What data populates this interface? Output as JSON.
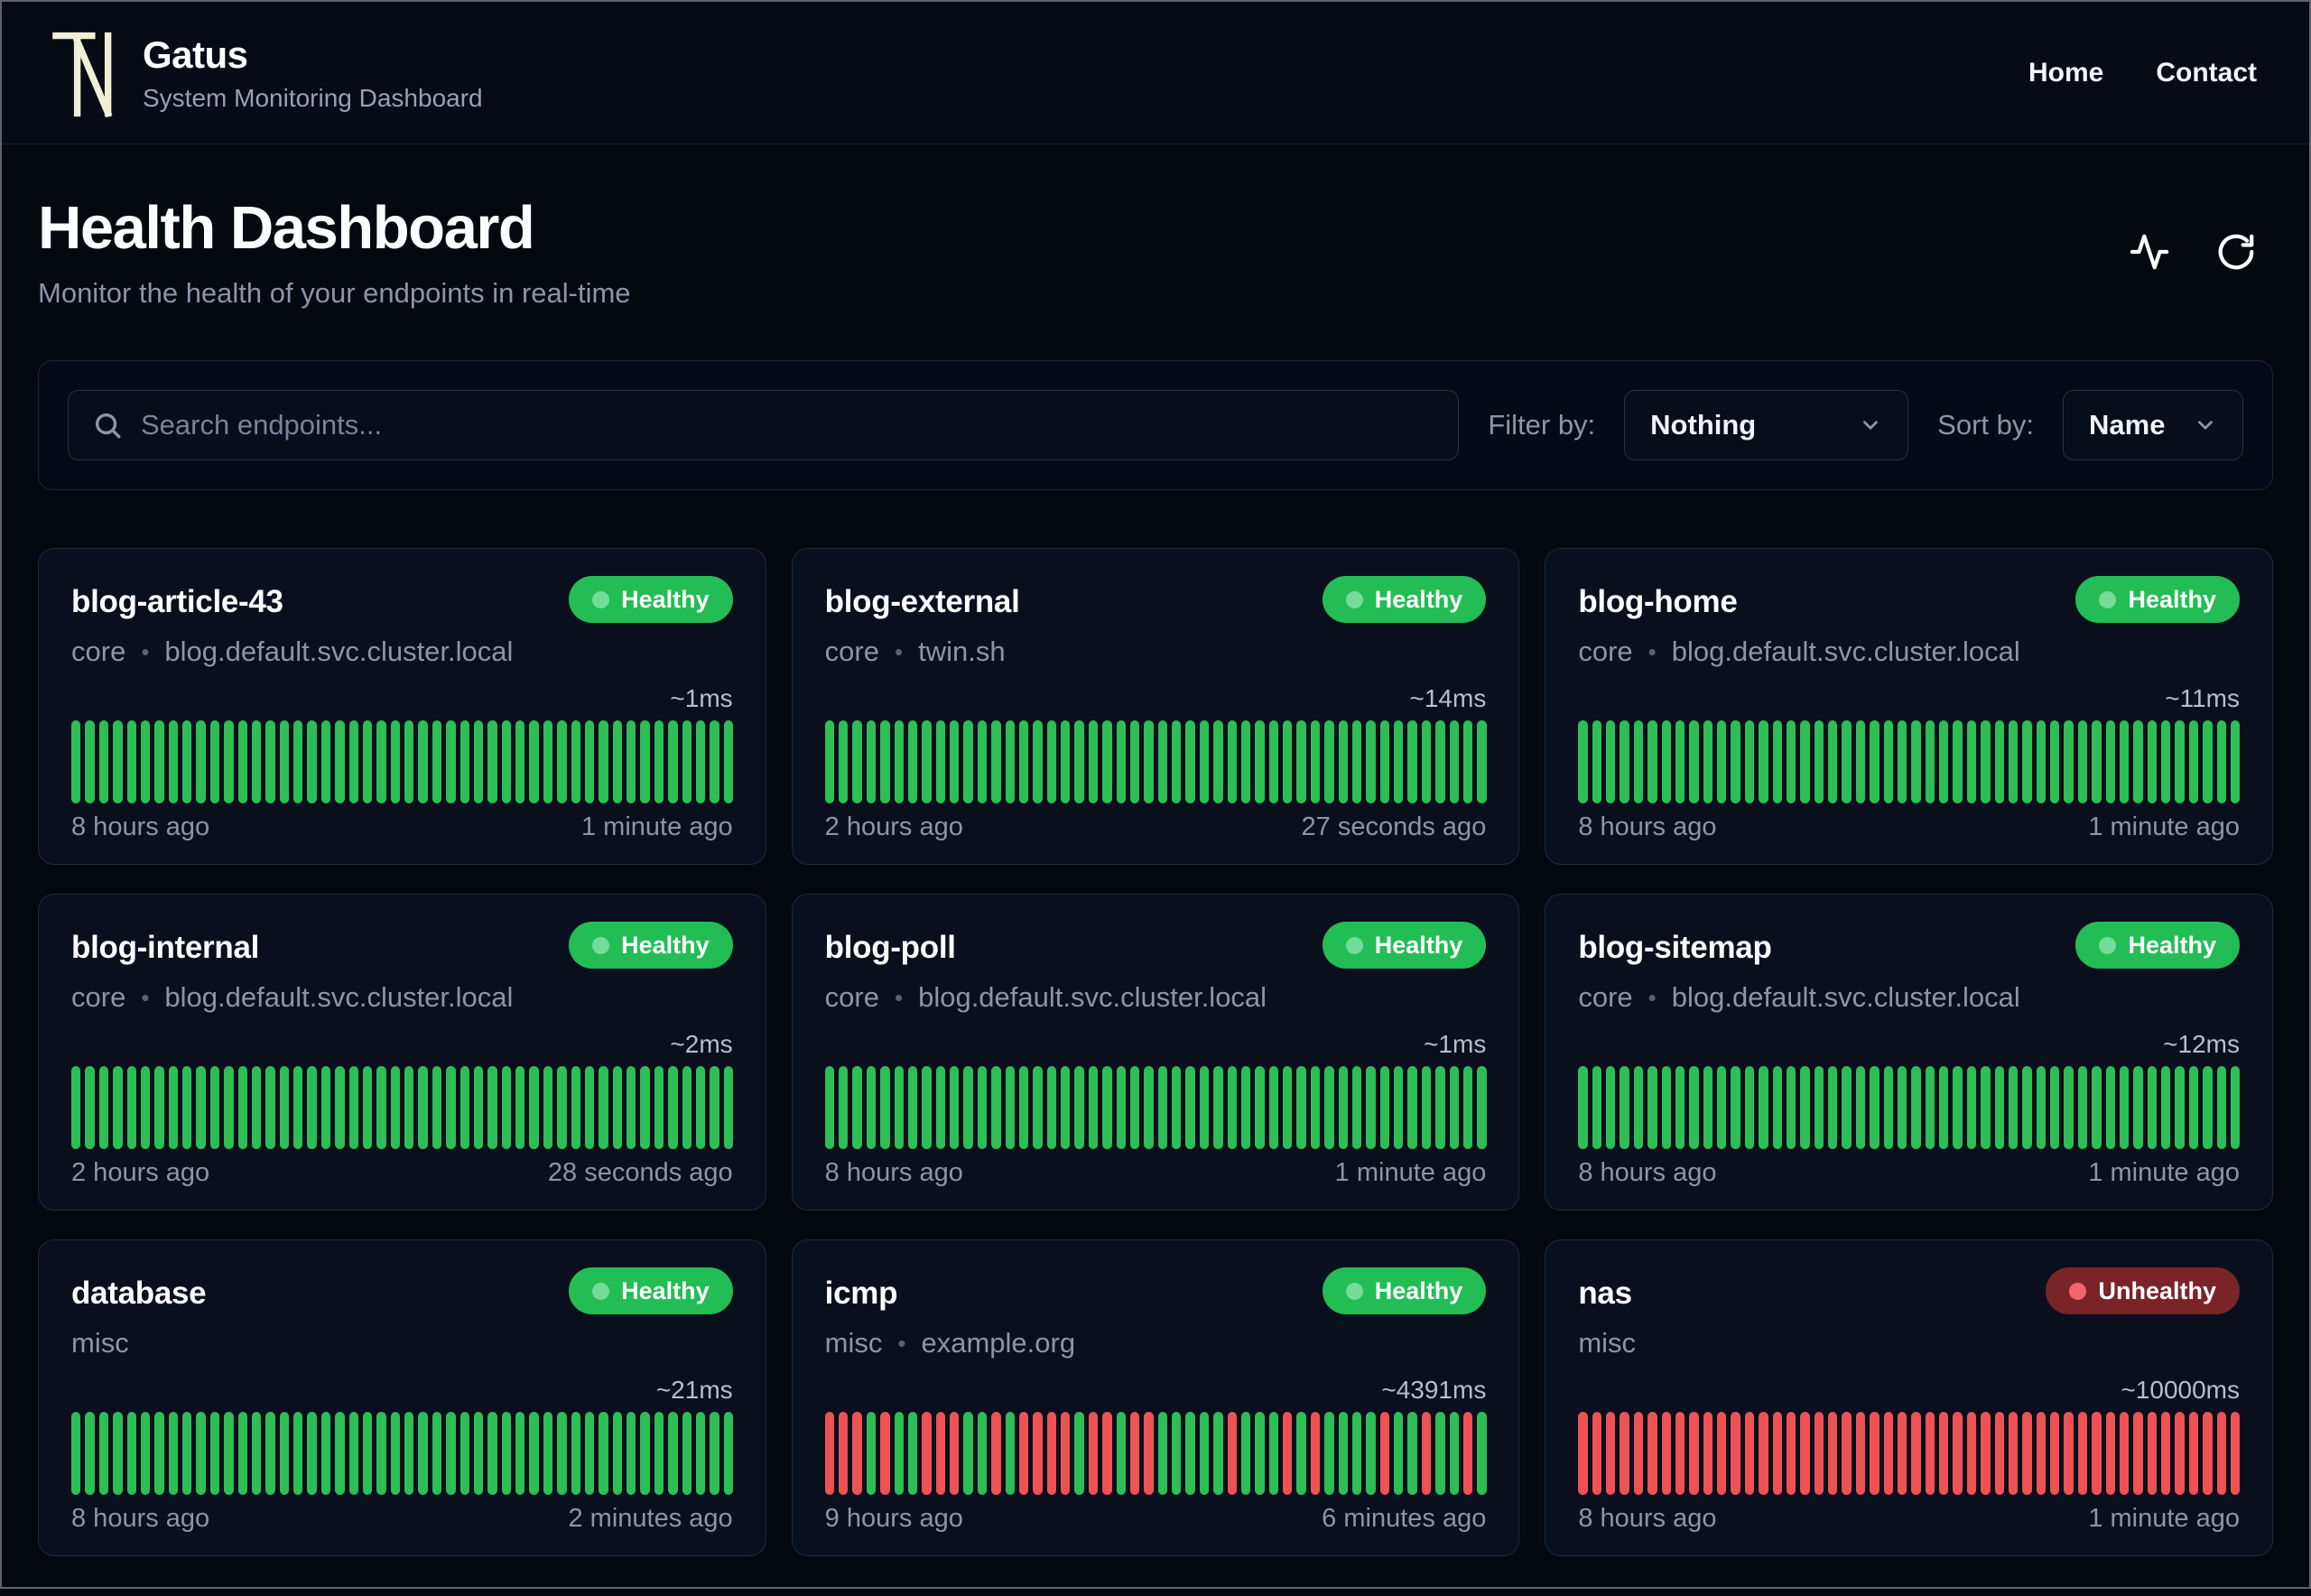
{
  "header": {
    "brand": "Gatus",
    "tagline": "System Monitoring Dashboard",
    "nav": [
      {
        "label": "Home"
      },
      {
        "label": "Contact"
      }
    ]
  },
  "page": {
    "title": "Health Dashboard",
    "subtitle": "Monitor the health of your endpoints in real-time"
  },
  "toolbar": {
    "search_placeholder": "Search endpoints...",
    "filter_label": "Filter by:",
    "filter_value": "Nothing",
    "sort_label": "Sort by:",
    "sort_value": "Name"
  },
  "colors": {
    "healthy_badge": "#23bd55",
    "unhealthy_badge": "#7b2428",
    "bar_success": "#2dbe55",
    "bar_failure": "#ee5254",
    "background": "#04080f",
    "card_background": "#090f1d"
  },
  "endpoints": [
    {
      "name": "blog-article-43",
      "status": "Healthy",
      "group": "core",
      "host": "blog.default.svc.cluster.local",
      "latency": "~1ms",
      "from": "8 hours ago",
      "to": "1 minute ago",
      "bars": "gggggggggggggggggggggggggggggggggggggggggggggggg"
    },
    {
      "name": "blog-external",
      "status": "Healthy",
      "group": "core",
      "host": "twin.sh",
      "latency": "~14ms",
      "from": "2 hours ago",
      "to": "27 seconds ago",
      "bars": "gggggggggggggggggggggggggggggggggggggggggggggggg"
    },
    {
      "name": "blog-home",
      "status": "Healthy",
      "group": "core",
      "host": "blog.default.svc.cluster.local",
      "latency": "~11ms",
      "from": "8 hours ago",
      "to": "1 minute ago",
      "bars": "gggggggggggggggggggggggggggggggggggggggggggggggg"
    },
    {
      "name": "blog-internal",
      "status": "Healthy",
      "group": "core",
      "host": "blog.default.svc.cluster.local",
      "latency": "~2ms",
      "from": "2 hours ago",
      "to": "28 seconds ago",
      "bars": "gggggggggggggggggggggggggggggggggggggggggggggggg"
    },
    {
      "name": "blog-poll",
      "status": "Healthy",
      "group": "core",
      "host": "blog.default.svc.cluster.local",
      "latency": "~1ms",
      "from": "8 hours ago",
      "to": "1 minute ago",
      "bars": "gggggggggggggggggggggggggggggggggggggggggggggggg"
    },
    {
      "name": "blog-sitemap",
      "status": "Healthy",
      "group": "core",
      "host": "blog.default.svc.cluster.local",
      "latency": "~12ms",
      "from": "8 hours ago",
      "to": "1 minute ago",
      "bars": "gggggggggggggggggggggggggggggggggggggggggggggggg"
    },
    {
      "name": "database",
      "status": "Healthy",
      "group": "misc",
      "host": "",
      "latency": "~21ms",
      "from": "8 hours ago",
      "to": "2 minutes ago",
      "bars": "gggggggggggggggggggggggggggggggggggggggggggggggg"
    },
    {
      "name": "icmp",
      "status": "Healthy",
      "group": "misc",
      "host": "example.org",
      "latency": "~4391ms",
      "from": "9 hours ago",
      "to": "6 minutes ago",
      "bars": "rrrgrggrrrggrgrrrrgrrgrrgggggrgggrgrggggrggrggrg"
    },
    {
      "name": "nas",
      "status": "Unhealthy",
      "group": "misc",
      "host": "",
      "latency": "~10000ms",
      "from": "8 hours ago",
      "to": "1 minute ago",
      "bars": "rrrrrrrrrrrrrrrrrrrrrrrrrrrrrrrrrrrrrrrrrrrrrrrr"
    }
  ]
}
